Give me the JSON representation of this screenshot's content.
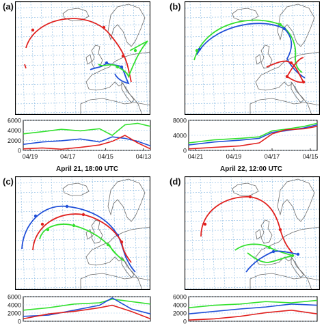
{
  "colors": {
    "red": "#e0201e",
    "blue": "#1f4fd8",
    "green": "#33e02e",
    "grid": "#9fc7e8",
    "coast": "#6b6b6b",
    "frame": "#000000"
  },
  "panels": [
    {
      "label": "(a)",
      "title": "",
      "ts_yticks": [
        "6000",
        "4000",
        "2000",
        "0"
      ],
      "ts_xticks": [
        "04/19",
        "04/17",
        "04/15",
        "04/13"
      ]
    },
    {
      "label": "(b)",
      "title": "",
      "ts_yticks": [
        "8000",
        "4000",
        "0"
      ],
      "ts_xticks": [
        "04/21",
        "04/19",
        "04/17",
        "04/15"
      ]
    },
    {
      "label": "(c)",
      "title": "April 21, 18:00 UTC",
      "ts_yticks": [
        "6000",
        "4000",
        "2000",
        "0"
      ],
      "ts_xticks": []
    },
    {
      "label": "(d)",
      "title": "April 22, 12:00 UTC",
      "ts_yticks": [
        "6000",
        "4000",
        "2000",
        "0"
      ],
      "ts_xticks": []
    }
  ],
  "icons": {
    "coastline": "coastline-map"
  }
}
